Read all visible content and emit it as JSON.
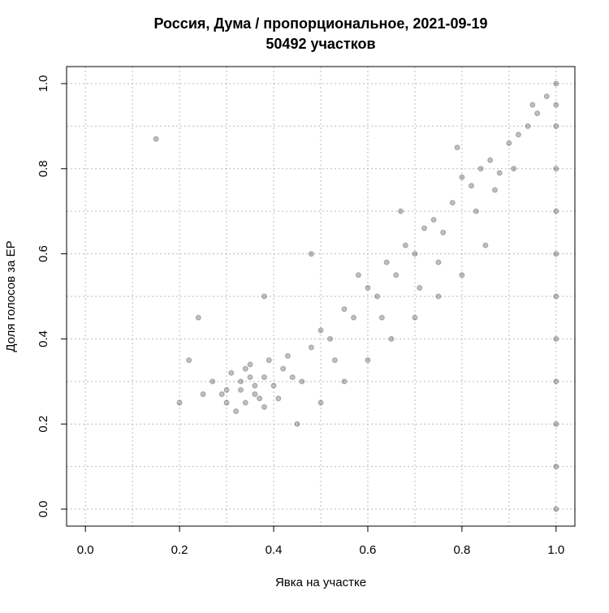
{
  "chart_data": {
    "type": "scatter",
    "title": "Россия, Дума / пропорциональное, 2021-09-19",
    "subtitle": "50492 участков",
    "x_label": "Явка на участке",
    "y_label": "Доля голосов за ЕР",
    "xlim": [
      -0.04,
      1.04
    ],
    "ylim": [
      -0.04,
      1.04
    ],
    "xticks": [
      {
        "value": 0,
        "label": "0.0"
      },
      0.2,
      0.4,
      0.6,
      0.8,
      {
        "value": 1,
        "label": "1.0"
      }
    ],
    "yticks": [
      {
        "value": 0,
        "label": "0.0"
      },
      0.2,
      0.4,
      0.6,
      0.8,
      {
        "value": 1,
        "label": "1.0"
      }
    ],
    "xgrid": [
      0,
      0.1,
      0.2,
      0.3,
      0.4,
      0.5,
      0.6,
      0.7,
      0.8,
      0.9,
      1
    ],
    "ygrid": [
      0,
      0.1,
      0.2,
      0.3,
      0.4,
      0.5,
      0.6,
      0.7,
      0.8,
      0.9,
      1
    ],
    "grid": true,
    "color": "#000000",
    "opacity": 0.25,
    "x": [
      0.3,
      0.33,
      0.36,
      0.38,
      0.34,
      0.31,
      0.4,
      0.42,
      0.35,
      0.37,
      0.29,
      0.32,
      0.39,
      0.44,
      0.27,
      0.36,
      0.33,
      0.41,
      0.38,
      0.35,
      0.3,
      0.43,
      0.46,
      0.25,
      0.34,
      0.48,
      0.5,
      0.52,
      0.55,
      0.57,
      0.6,
      0.62,
      0.64,
      0.66,
      0.68,
      0.7,
      0.72,
      0.74,
      0.76,
      0.78,
      0.8,
      0.82,
      0.84,
      0.86,
      0.88,
      0.9,
      0.92,
      0.94,
      0.96,
      0.98,
      0.53,
      0.58,
      0.63,
      0.67,
      0.71,
      0.75,
      0.79,
      0.83,
      0.87,
      0.91,
      0.95,
      0.2,
      0.22,
      0.24,
      0.45,
      0.5,
      0.55,
      0.6,
      0.65,
      0.7,
      0.75,
      0.8,
      0.85,
      0.15,
      0.38,
      0.48,
      1,
      1,
      1,
      1,
      1,
      1,
      1,
      1,
      1,
      1,
      1,
      1
    ],
    "values": [
      0.28,
      0.3,
      0.27,
      0.31,
      0.25,
      0.32,
      0.29,
      0.33,
      0.34,
      0.26,
      0.27,
      0.23,
      0.35,
      0.31,
      0.3,
      0.29,
      0.28,
      0.26,
      0.24,
      0.31,
      0.25,
      0.36,
      0.3,
      0.27,
      0.33,
      0.38,
      0.42,
      0.4,
      0.47,
      0.45,
      0.52,
      0.5,
      0.58,
      0.55,
      0.62,
      0.6,
      0.66,
      0.68,
      0.65,
      0.72,
      0.78,
      0.76,
      0.8,
      0.82,
      0.79,
      0.86,
      0.88,
      0.9,
      0.93,
      0.97,
      0.35,
      0.55,
      0.45,
      0.7,
      0.52,
      0.58,
      0.85,
      0.7,
      0.75,
      0.8,
      0.95,
      0.25,
      0.35,
      0.45,
      0.2,
      0.25,
      0.3,
      0.35,
      0.4,
      0.45,
      0.5,
      0.55,
      0.62,
      0.87,
      0.5,
      0.6,
      1.0,
      0.95,
      0.9,
      0.8,
      0.6,
      0.4,
      0.3,
      0.2,
      0.0,
      0.1,
      0.5,
      0.7
    ]
  }
}
